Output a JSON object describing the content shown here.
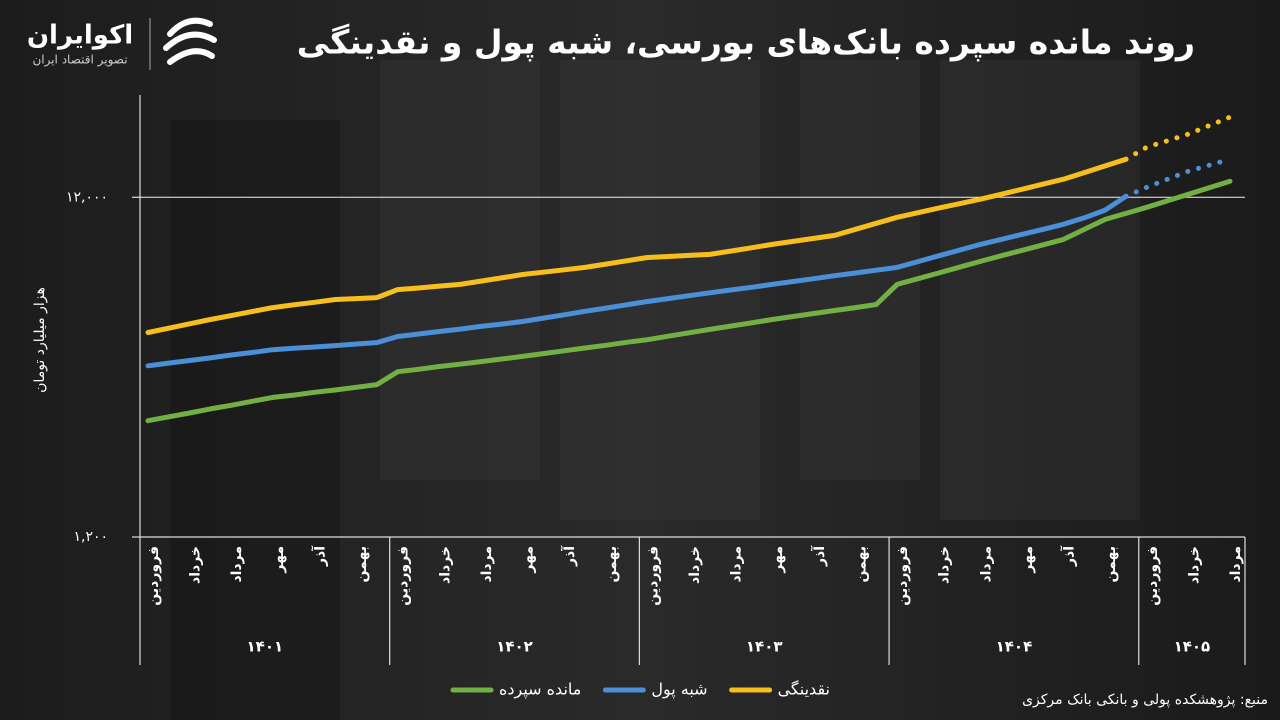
{
  "brand": {
    "name": "اکوایران",
    "tagline": "تصویر اقتصاد ایران"
  },
  "source": "منبع: پژوهشکده پولی و بانکی بانک مرکزی",
  "chart_data": {
    "type": "line",
    "title": "روند مانده سپرده بانک‌های بورسی، شبه پول و نقدینگی",
    "ylabel": "هزار میلیارد تومان",
    "log_scale": true,
    "ylim": [
      1200,
      24000
    ],
    "yticks": [
      {
        "value": 1200,
        "label": "۱,۲۰۰"
      },
      {
        "value": 12000,
        "label": "۱۲,۰۰۰"
      }
    ],
    "grid": true,
    "categories": [
      "فروردین",
      null,
      "خرداد",
      null,
      "مرداد",
      null,
      "مهر",
      null,
      "آذر",
      null,
      "بهمن",
      null,
      "فروردین",
      null,
      "خرداد",
      null,
      "مرداد",
      null,
      "مهر",
      null,
      "آذر",
      null,
      "بهمن",
      null,
      "فروردین",
      null,
      "خرداد",
      null,
      "مرداد",
      null,
      "مهر",
      null,
      "آذر",
      null,
      "بهمن",
      null,
      "فروردین",
      null,
      "خرداد",
      null,
      "مرداد",
      null,
      "مهر",
      null,
      "آذر",
      null,
      "بهمن",
      null,
      "فروردین",
      null,
      "خرداد",
      null,
      "مرداد"
    ],
    "years": [
      {
        "label": "۱۴۰۱",
        "months": 12
      },
      {
        "label": "۱۴۰۲",
        "months": 12
      },
      {
        "label": "۱۴۰۳",
        "months": 12
      },
      {
        "label": "۱۴۰۴",
        "months": 12
      },
      {
        "label": "۱۴۰۵",
        "months": 5
      }
    ],
    "series": [
      {
        "name": "مانده سپرده",
        "color": "#72b043",
        "dotted_from": null,
        "values": [
          2640,
          2710,
          2780,
          2860,
          2930,
          3010,
          3090,
          3140,
          3200,
          3250,
          3310,
          3370,
          3680,
          3740,
          3810,
          3870,
          3940,
          4010,
          4080,
          4160,
          4240,
          4320,
          4400,
          4490,
          4570,
          4680,
          4790,
          4900,
          5010,
          5120,
          5240,
          5350,
          5460,
          5570,
          5680,
          5800,
          6650,
          6910,
          7180,
          7470,
          7770,
          8070,
          8370,
          8690,
          9020,
          9650,
          10330,
          10760,
          11210,
          11720,
          12250,
          12800,
          13380
        ]
      },
      {
        "name": "شبه پول",
        "color": "#4b8fd8",
        "dotted_from": 47,
        "values": [
          3830,
          3900,
          3970,
          4040,
          4120,
          4190,
          4270,
          4310,
          4350,
          4390,
          4440,
          4480,
          4670,
          4750,
          4830,
          4910,
          5000,
          5080,
          5170,
          5290,
          5410,
          5540,
          5660,
          5790,
          5920,
          6040,
          6160,
          6280,
          6400,
          6520,
          6650,
          6780,
          6910,
          7050,
          7180,
          7320,
          7460,
          7760,
          8070,
          8390,
          8720,
          9020,
          9330,
          9650,
          9990,
          10440,
          11000,
          12080,
          12840,
          13560,
          14320,
          14910,
          15530
        ]
      },
      {
        "name": "نقدینگی",
        "color": "#f8bf1c",
        "dotted_from": 47,
        "values": [
          4800,
          4940,
          5090,
          5240,
          5380,
          5530,
          5680,
          5790,
          5890,
          6000,
          6040,
          6080,
          6420,
          6490,
          6570,
          6650,
          6800,
          6950,
          7110,
          7220,
          7340,
          7460,
          7630,
          7800,
          7980,
          8030,
          8090,
          8150,
          8330,
          8520,
          8720,
          8900,
          9080,
          9270,
          9660,
          10060,
          10480,
          10810,
          11150,
          11490,
          11840,
          12240,
          12670,
          13110,
          13560,
          14180,
          14840,
          15530,
          16850,
          17610,
          18410,
          19500,
          20660
        ]
      }
    ]
  }
}
